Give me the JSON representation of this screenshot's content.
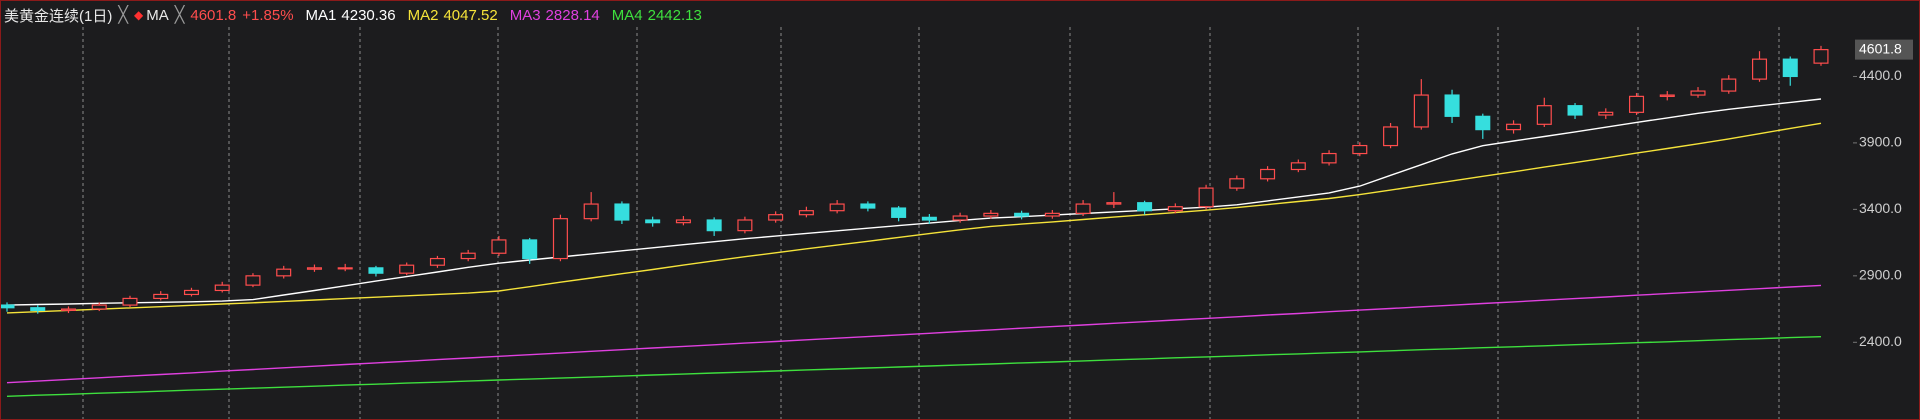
{
  "chart_data": {
    "type": "candlestick",
    "title": "美黄金连续(1日)",
    "indicator": "MA",
    "change_label": "+1.85%",
    "up_color": "#ff4d4d",
    "down_color": "#36dede",
    "open": [
      2680,
      2660,
      2640,
      2650,
      2680,
      2730,
      2760,
      2790,
      2830,
      2900,
      2950,
      2960,
      2960,
      2920,
      2980,
      3030,
      3070,
      3170,
      3030,
      3330,
      3440,
      3320,
      3300,
      3320,
      3240,
      3320,
      3360,
      3390,
      3440,
      3410,
      3340,
      3320,
      3350,
      3370,
      3350,
      3370,
      3440,
      3450,
      3390,
      3420,
      3560,
      3630,
      3700,
      3750,
      3820,
      3880,
      4020,
      4260,
      4100,
      4000,
      4040,
      4180,
      4110,
      4130,
      4250,
      4260,
      4290,
      4380,
      4530,
      4500
    ],
    "high": [
      2700,
      2680,
      2670,
      2700,
      2750,
      2785,
      2810,
      2855,
      2920,
      2975,
      2985,
      2990,
      2975,
      3000,
      3050,
      3095,
      3200,
      3185,
      3360,
      3530,
      3460,
      3345,
      3350,
      3340,
      3345,
      3385,
      3420,
      3470,
      3460,
      3425,
      3365,
      3375,
      3395,
      3390,
      3395,
      3470,
      3530,
      3465,
      3445,
      3585,
      3655,
      3725,
      3775,
      3845,
      3905,
      4050,
      4380,
      4300,
      4120,
      4070,
      4240,
      4200,
      4160,
      4275,
      4290,
      4320,
      4410,
      4590,
      4550,
      4630
    ],
    "low": [
      2630,
      2615,
      2620,
      2635,
      2665,
      2715,
      2745,
      2775,
      2815,
      2880,
      2930,
      2935,
      2895,
      2905,
      2960,
      3010,
      3050,
      2990,
      3010,
      3310,
      3290,
      3270,
      3280,
      3200,
      3220,
      3300,
      3340,
      3370,
      3385,
      3310,
      3290,
      3300,
      3330,
      3325,
      3330,
      3350,
      3410,
      3360,
      3370,
      3400,
      3540,
      3610,
      3680,
      3730,
      3800,
      3860,
      4000,
      4050,
      3930,
      3970,
      4020,
      4080,
      4080,
      4110,
      4220,
      4240,
      4270,
      4360,
      4330,
      4480
    ],
    "close": [
      2660,
      2640,
      2650,
      2680,
      2730,
      2760,
      2790,
      2830,
      2900,
      2950,
      2960,
      2960,
      2920,
      2980,
      3030,
      3070,
      3170,
      3030,
      3330,
      3440,
      3320,
      3300,
      3320,
      3240,
      3320,
      3360,
      3390,
      3440,
      3410,
      3340,
      3320,
      3350,
      3370,
      3350,
      3370,
      3440,
      3450,
      3390,
      3420,
      3560,
      3630,
      3700,
      3750,
      3820,
      3880,
      4020,
      4260,
      4100,
      4000,
      4040,
      4180,
      4110,
      4130,
      4250,
      4260,
      4290,
      4380,
      4530,
      4400,
      4601.8
    ],
    "series": [
      {
        "name": "MA1",
        "color": "#ffffff",
        "values": [
          2680,
          2684,
          2688,
          2693,
          2697,
          2701,
          2705,
          2710,
          2721,
          2756,
          2790,
          2825,
          2860,
          2894,
          2929,
          2964,
          2995,
          3019,
          3042,
          3065,
          3088,
          3111,
          3134,
          3157,
          3179,
          3199,
          3219,
          3239,
          3258,
          3278,
          3297,
          3317,
          3334,
          3345,
          3357,
          3369,
          3381,
          3392,
          3404,
          3416,
          3434,
          3464,
          3494,
          3524,
          3575,
          3656,
          3736,
          3817,
          3879,
          3914,
          3948,
          3983,
          4018,
          4054,
          4088,
          4123,
          4153,
          4179,
          4205,
          4230.36
        ]
      },
      {
        "name": "MA2",
        "color": "#f5e33a",
        "values": [
          2621,
          2630,
          2640,
          2649,
          2659,
          2668,
          2678,
          2688,
          2697,
          2708,
          2718,
          2729,
          2739,
          2750,
          2760,
          2770,
          2786,
          2818,
          2852,
          2884,
          2916,
          2948,
          2981,
          3013,
          3044,
          3073,
          3103,
          3131,
          3160,
          3189,
          3218,
          3246,
          3272,
          3289,
          3306,
          3324,
          3342,
          3359,
          3376,
          3394,
          3413,
          3436,
          3459,
          3482,
          3511,
          3545,
          3580,
          3614,
          3649,
          3683,
          3718,
          3752,
          3787,
          3823,
          3858,
          3893,
          3930,
          3969,
          4009,
          4047.52
        ]
      },
      {
        "name": "MA3",
        "color": "#e040e0",
        "values": [
          2096,
          2108,
          2121,
          2133,
          2146,
          2158,
          2170,
          2183,
          2195,
          2208,
          2220,
          2233,
          2245,
          2257,
          2270,
          2282,
          2295,
          2307,
          2319,
          2332,
          2344,
          2357,
          2369,
          2381,
          2394,
          2406,
          2419,
          2431,
          2443,
          2456,
          2468,
          2481,
          2493,
          2506,
          2518,
          2530,
          2543,
          2555,
          2568,
          2580,
          2592,
          2605,
          2617,
          2630,
          2642,
          2654,
          2667,
          2679,
          2692,
          2704,
          2717,
          2729,
          2741,
          2754,
          2766,
          2779,
          2791,
          2803,
          2816,
          2828.14
        ]
      },
      {
        "name": "MA4",
        "color": "#3ee03e",
        "values": [
          1994,
          2002,
          2009,
          2017,
          2024,
          2032,
          2040,
          2047,
          2055,
          2062,
          2070,
          2078,
          2085,
          2093,
          2100,
          2108,
          2116,
          2123,
          2131,
          2138,
          2146,
          2154,
          2161,
          2169,
          2176,
          2184,
          2192,
          2199,
          2207,
          2214,
          2222,
          2230,
          2237,
          2245,
          2252,
          2260,
          2268,
          2275,
          2283,
          2290,
          2298,
          2306,
          2313,
          2321,
          2328,
          2336,
          2344,
          2351,
          2359,
          2366,
          2374,
          2382,
          2389,
          2397,
          2404,
          2412,
          2420,
          2427,
          2435,
          2442.13
        ]
      }
    ],
    "ylim": [
      1838,
      4787
    ],
    "yticks": [
      {
        "value": 2400,
        "label": "2400.0"
      },
      {
        "value": 2900,
        "label": "2900.0"
      },
      {
        "value": 3400,
        "label": "3400.0"
      },
      {
        "value": 3900,
        "label": "3900.0"
      },
      {
        "value": 4400,
        "label": "4400.0"
      }
    ]
  }
}
